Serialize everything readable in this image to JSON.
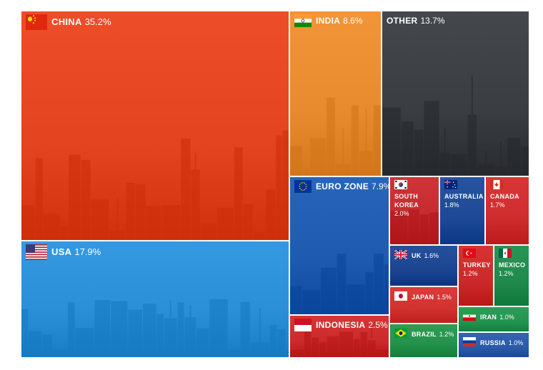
{
  "chart_data": {
    "type": "treemap",
    "title": "",
    "values_unit": "%",
    "items": [
      {
        "name": "CHINA",
        "value": 35.2,
        "pct_label": "35.2%",
        "color": "#e4431f",
        "flag": "china-flag-icon"
      },
      {
        "name": "USA",
        "value": 17.9,
        "pct_label": "17.9%",
        "color": "#2b8fd8",
        "flag": "usa-flag-icon"
      },
      {
        "name": "INDIA",
        "value": 8.6,
        "pct_label": "8.6%",
        "color": "#e88a2e",
        "flag": "india-flag-icon"
      },
      {
        "name": "OTHER",
        "value": 13.7,
        "pct_label": "13.7%",
        "color": "#3a3d42",
        "flag": ""
      },
      {
        "name": "EURO ZONE",
        "value": 7.9,
        "pct_label": "7.9%",
        "color": "#1e5bb0",
        "flag": "eu-flag-icon"
      },
      {
        "name": "SOUTH KOREA",
        "value": 2.0,
        "pct_label": "2.0%",
        "color": "#c42a2e",
        "flag": "south-korea-flag-icon"
      },
      {
        "name": "AUSTRALIA",
        "value": 1.8,
        "pct_label": "1.8%",
        "color": "#1d4a96",
        "flag": "australia-flag-icon"
      },
      {
        "name": "CANADA",
        "value": 1.7,
        "pct_label": "1.7%",
        "color": "#cf2d2d",
        "flag": "canada-flag-icon"
      },
      {
        "name": "UK",
        "value": 1.6,
        "pct_label": "1.6%",
        "color": "#1c4692",
        "flag": "uk-flag-icon"
      },
      {
        "name": "TURKEY",
        "value": 1.2,
        "pct_label": "1.2%",
        "color": "#cc2a2a",
        "flag": "turkey-flag-icon"
      },
      {
        "name": "MEXICO",
        "value": 1.2,
        "pct_label": "1.2%",
        "color": "#1f8a4c",
        "flag": "mexico-flag-icon"
      },
      {
        "name": "JAPAN",
        "value": 1.5,
        "pct_label": "1.5%",
        "color": "#d1312f",
        "flag": "japan-flag-icon"
      },
      {
        "name": "IRAN",
        "value": 1.0,
        "pct_label": "1.0%",
        "color": "#23944f",
        "flag": "iran-flag-icon"
      },
      {
        "name": "INDONESIA",
        "value": 2.5,
        "pct_label": "2.5%",
        "color": "#cc2b2b",
        "flag": "indonesia-flag-icon"
      },
      {
        "name": "BRAZIL",
        "value": 1.2,
        "pct_label": "1.2%",
        "color": "#24924b",
        "flag": "brazil-flag-icon"
      },
      {
        "name": "RUSSIA",
        "value": 1.0,
        "pct_label": "1.0%",
        "color": "#2a5aa8",
        "flag": "russia-flag-icon"
      }
    ]
  }
}
